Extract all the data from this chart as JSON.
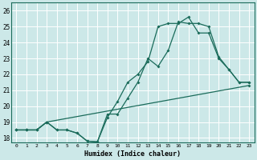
{
  "title": "",
  "xlabel": "Humidex (Indice chaleur)",
  "bg_color": "#cce8e8",
  "grid_color": "#ffffff",
  "line_color": "#1a6b5a",
  "xlim": [
    -0.5,
    23.5
  ],
  "ylim": [
    17.7,
    26.5
  ],
  "xticks": [
    0,
    1,
    2,
    3,
    4,
    5,
    6,
    7,
    8,
    9,
    10,
    11,
    12,
    13,
    14,
    15,
    16,
    17,
    18,
    19,
    20,
    21,
    22,
    23
  ],
  "yticks": [
    18,
    19,
    20,
    21,
    22,
    23,
    24,
    25,
    26
  ],
  "line1_x": [
    0,
    1,
    2,
    3,
    4,
    5,
    6,
    7,
    8,
    9,
    10,
    11,
    12,
    13,
    14,
    15,
    16,
    17,
    18,
    19,
    20,
    21,
    22,
    23
  ],
  "line1_y": [
    18.5,
    18.5,
    18.5,
    19.0,
    18.5,
    18.5,
    18.3,
    17.8,
    17.75,
    19.5,
    19.5,
    20.5,
    21.5,
    23.0,
    22.5,
    23.5,
    25.3,
    25.2,
    25.2,
    25.0,
    23.1,
    22.3,
    21.5,
    21.5
  ],
  "line2_x": [
    0,
    1,
    2,
    3,
    4,
    5,
    6,
    7,
    8,
    9,
    10,
    11,
    12,
    13,
    14,
    15,
    16,
    17,
    18,
    19,
    20,
    21,
    22,
    23
  ],
  "line2_y": [
    18.5,
    18.5,
    18.5,
    19.0,
    18.5,
    18.5,
    18.3,
    17.8,
    17.75,
    19.3,
    20.3,
    21.5,
    22.0,
    22.8,
    25.0,
    25.2,
    25.2,
    25.6,
    24.6,
    24.6,
    23.0,
    22.3,
    21.5,
    21.5
  ],
  "line3_x": [
    0,
    1,
    2,
    3,
    23
  ],
  "line3_y": [
    18.5,
    18.5,
    18.5,
    19.0,
    21.3
  ],
  "xtick_labels": [
    "0",
    "1",
    "2",
    "3",
    "4",
    "5",
    "6",
    "7",
    "8",
    "9",
    "10",
    "11",
    "12",
    "13",
    "14",
    "15",
    "16",
    "17",
    "18",
    "19",
    "20",
    "21",
    "22",
    "23"
  ],
  "ytick_labels": [
    "18",
    "19",
    "20",
    "21",
    "22",
    "23",
    "24",
    "25",
    "26"
  ]
}
